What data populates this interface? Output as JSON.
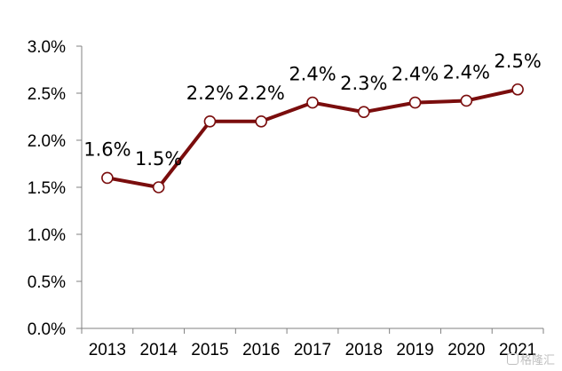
{
  "chart_data": {
    "type": "line",
    "x": [
      "2013",
      "2014",
      "2015",
      "2016",
      "2017",
      "2018",
      "2019",
      "2020",
      "2021"
    ],
    "series": [
      {
        "values": [
          1.6,
          1.5,
          2.2,
          2.2,
          2.4,
          2.3,
          2.4,
          2.42,
          2.54
        ],
        "data_labels": [
          "1.6%",
          "1.5%",
          "2.2%",
          "2.2%",
          "2.4%",
          "2.3%",
          "2.4%",
          "2.4%",
          "2.5%"
        ]
      }
    ],
    "ylim": [
      0,
      3.0
    ],
    "yticks": [
      0,
      0.5,
      1.0,
      1.5,
      2.0,
      2.5,
      3.0
    ],
    "ytick_labels": [
      "0.0%",
      "0.5%",
      "1.0%",
      "1.5%",
      "2.0%",
      "2.5%",
      "3.0%"
    ],
    "title": "",
    "xlabel": "",
    "ylabel": "",
    "grid": false,
    "line_color": "#7a0d0d",
    "marker_fill": "#ffffff"
  },
  "watermark": {
    "text": "格隆汇"
  }
}
